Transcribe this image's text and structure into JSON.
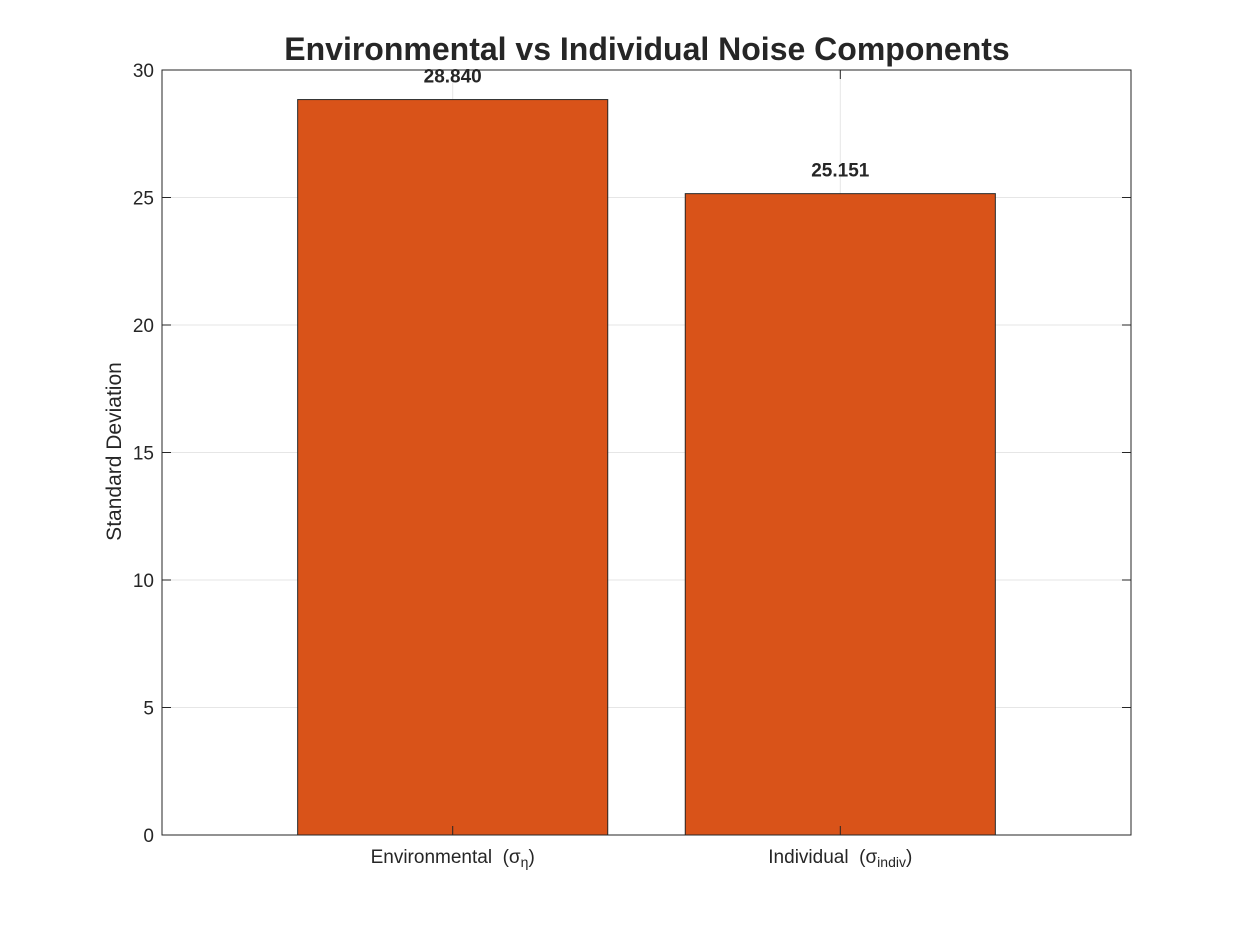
{
  "chart_data": {
    "type": "bar",
    "title": "Environmental vs Individual Noise Components",
    "xlabel": "",
    "ylabel": "Standard Deviation",
    "categories": [
      {
        "label": "Environmental",
        "symbol": "σ",
        "subscript": "η"
      },
      {
        "label": "Individual",
        "symbol": "σ",
        "subscript": "indiv"
      }
    ],
    "values": [
      28.84,
      25.151
    ],
    "value_labels": [
      "28.840",
      "25.151"
    ],
    "ylim": [
      0,
      30
    ],
    "yticks": [
      0,
      5,
      10,
      15,
      20,
      25,
      30
    ],
    "xlim": [
      0.25,
      2.75
    ],
    "bar_width": 0.8,
    "grid": true,
    "legend": "none",
    "colors": {
      "bar_fill": "#D95319",
      "bar_edge": "#262626",
      "grid": "#E6E6E6",
      "axis": "#262626"
    }
  }
}
